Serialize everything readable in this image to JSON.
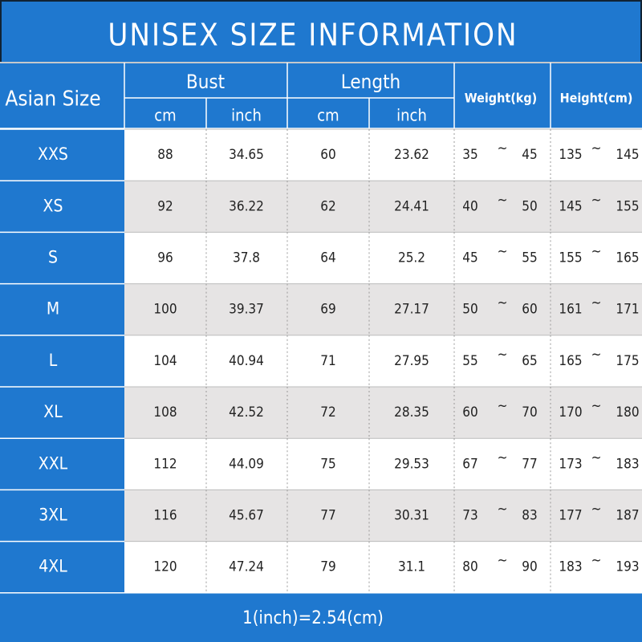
{
  "title": "UNISEX SIZE INFORMATION",
  "header": {
    "size": "Asian Size",
    "bust": "Bust",
    "length": "Length",
    "weight": "Weight(kg)",
    "height": "Height(cm)",
    "bust_units": [
      "cm",
      "inch"
    ],
    "length_units": [
      "cm",
      "inch"
    ]
  },
  "table": {
    "separator": "~",
    "rows": [
      {
        "size": "XXS",
        "bust": [
          "88",
          "34.65"
        ],
        "length": [
          "60",
          "23.62"
        ],
        "weight": [
          "35",
          "45"
        ],
        "height": [
          "135",
          "145"
        ]
      },
      {
        "size": "XS",
        "bust": [
          "92",
          "36.22"
        ],
        "length": [
          "62",
          "24.41"
        ],
        "weight": [
          "40",
          "50"
        ],
        "height": [
          "145",
          "155"
        ]
      },
      {
        "size": "S",
        "bust": [
          "96",
          "37.8"
        ],
        "length": [
          "64",
          "25.2"
        ],
        "weight": [
          "45",
          "55"
        ],
        "height": [
          "155",
          "165"
        ]
      },
      {
        "size": "M",
        "bust": [
          "100",
          "39.37"
        ],
        "length": [
          "69",
          "27.17"
        ],
        "weight": [
          "50",
          "60"
        ],
        "height": [
          "161",
          "171"
        ]
      },
      {
        "size": "L",
        "bust": [
          "104",
          "40.94"
        ],
        "length": [
          "71",
          "27.95"
        ],
        "weight": [
          "55",
          "65"
        ],
        "height": [
          "165",
          "175"
        ]
      },
      {
        "size": "XL",
        "bust": [
          "108",
          "42.52"
        ],
        "length": [
          "72",
          "28.35"
        ],
        "weight": [
          "60",
          "70"
        ],
        "height": [
          "170",
          "180"
        ]
      },
      {
        "size": "XXL",
        "bust": [
          "112",
          "44.09"
        ],
        "length": [
          "75",
          "29.53"
        ],
        "weight": [
          "67",
          "77"
        ],
        "height": [
          "173",
          "183"
        ]
      },
      {
        "size": "3XL",
        "bust": [
          "116",
          "45.67"
        ],
        "length": [
          "77",
          "30.31"
        ],
        "weight": [
          "73",
          "83"
        ],
        "height": [
          "177",
          "187"
        ]
      },
      {
        "size": "4XL",
        "bust": [
          "120",
          "47.24"
        ],
        "length": [
          "79",
          "31.1"
        ],
        "weight": [
          "80",
          "90"
        ],
        "height": [
          "183",
          "193"
        ]
      }
    ]
  },
  "footer": "1(inch)=2.54(cm)"
}
